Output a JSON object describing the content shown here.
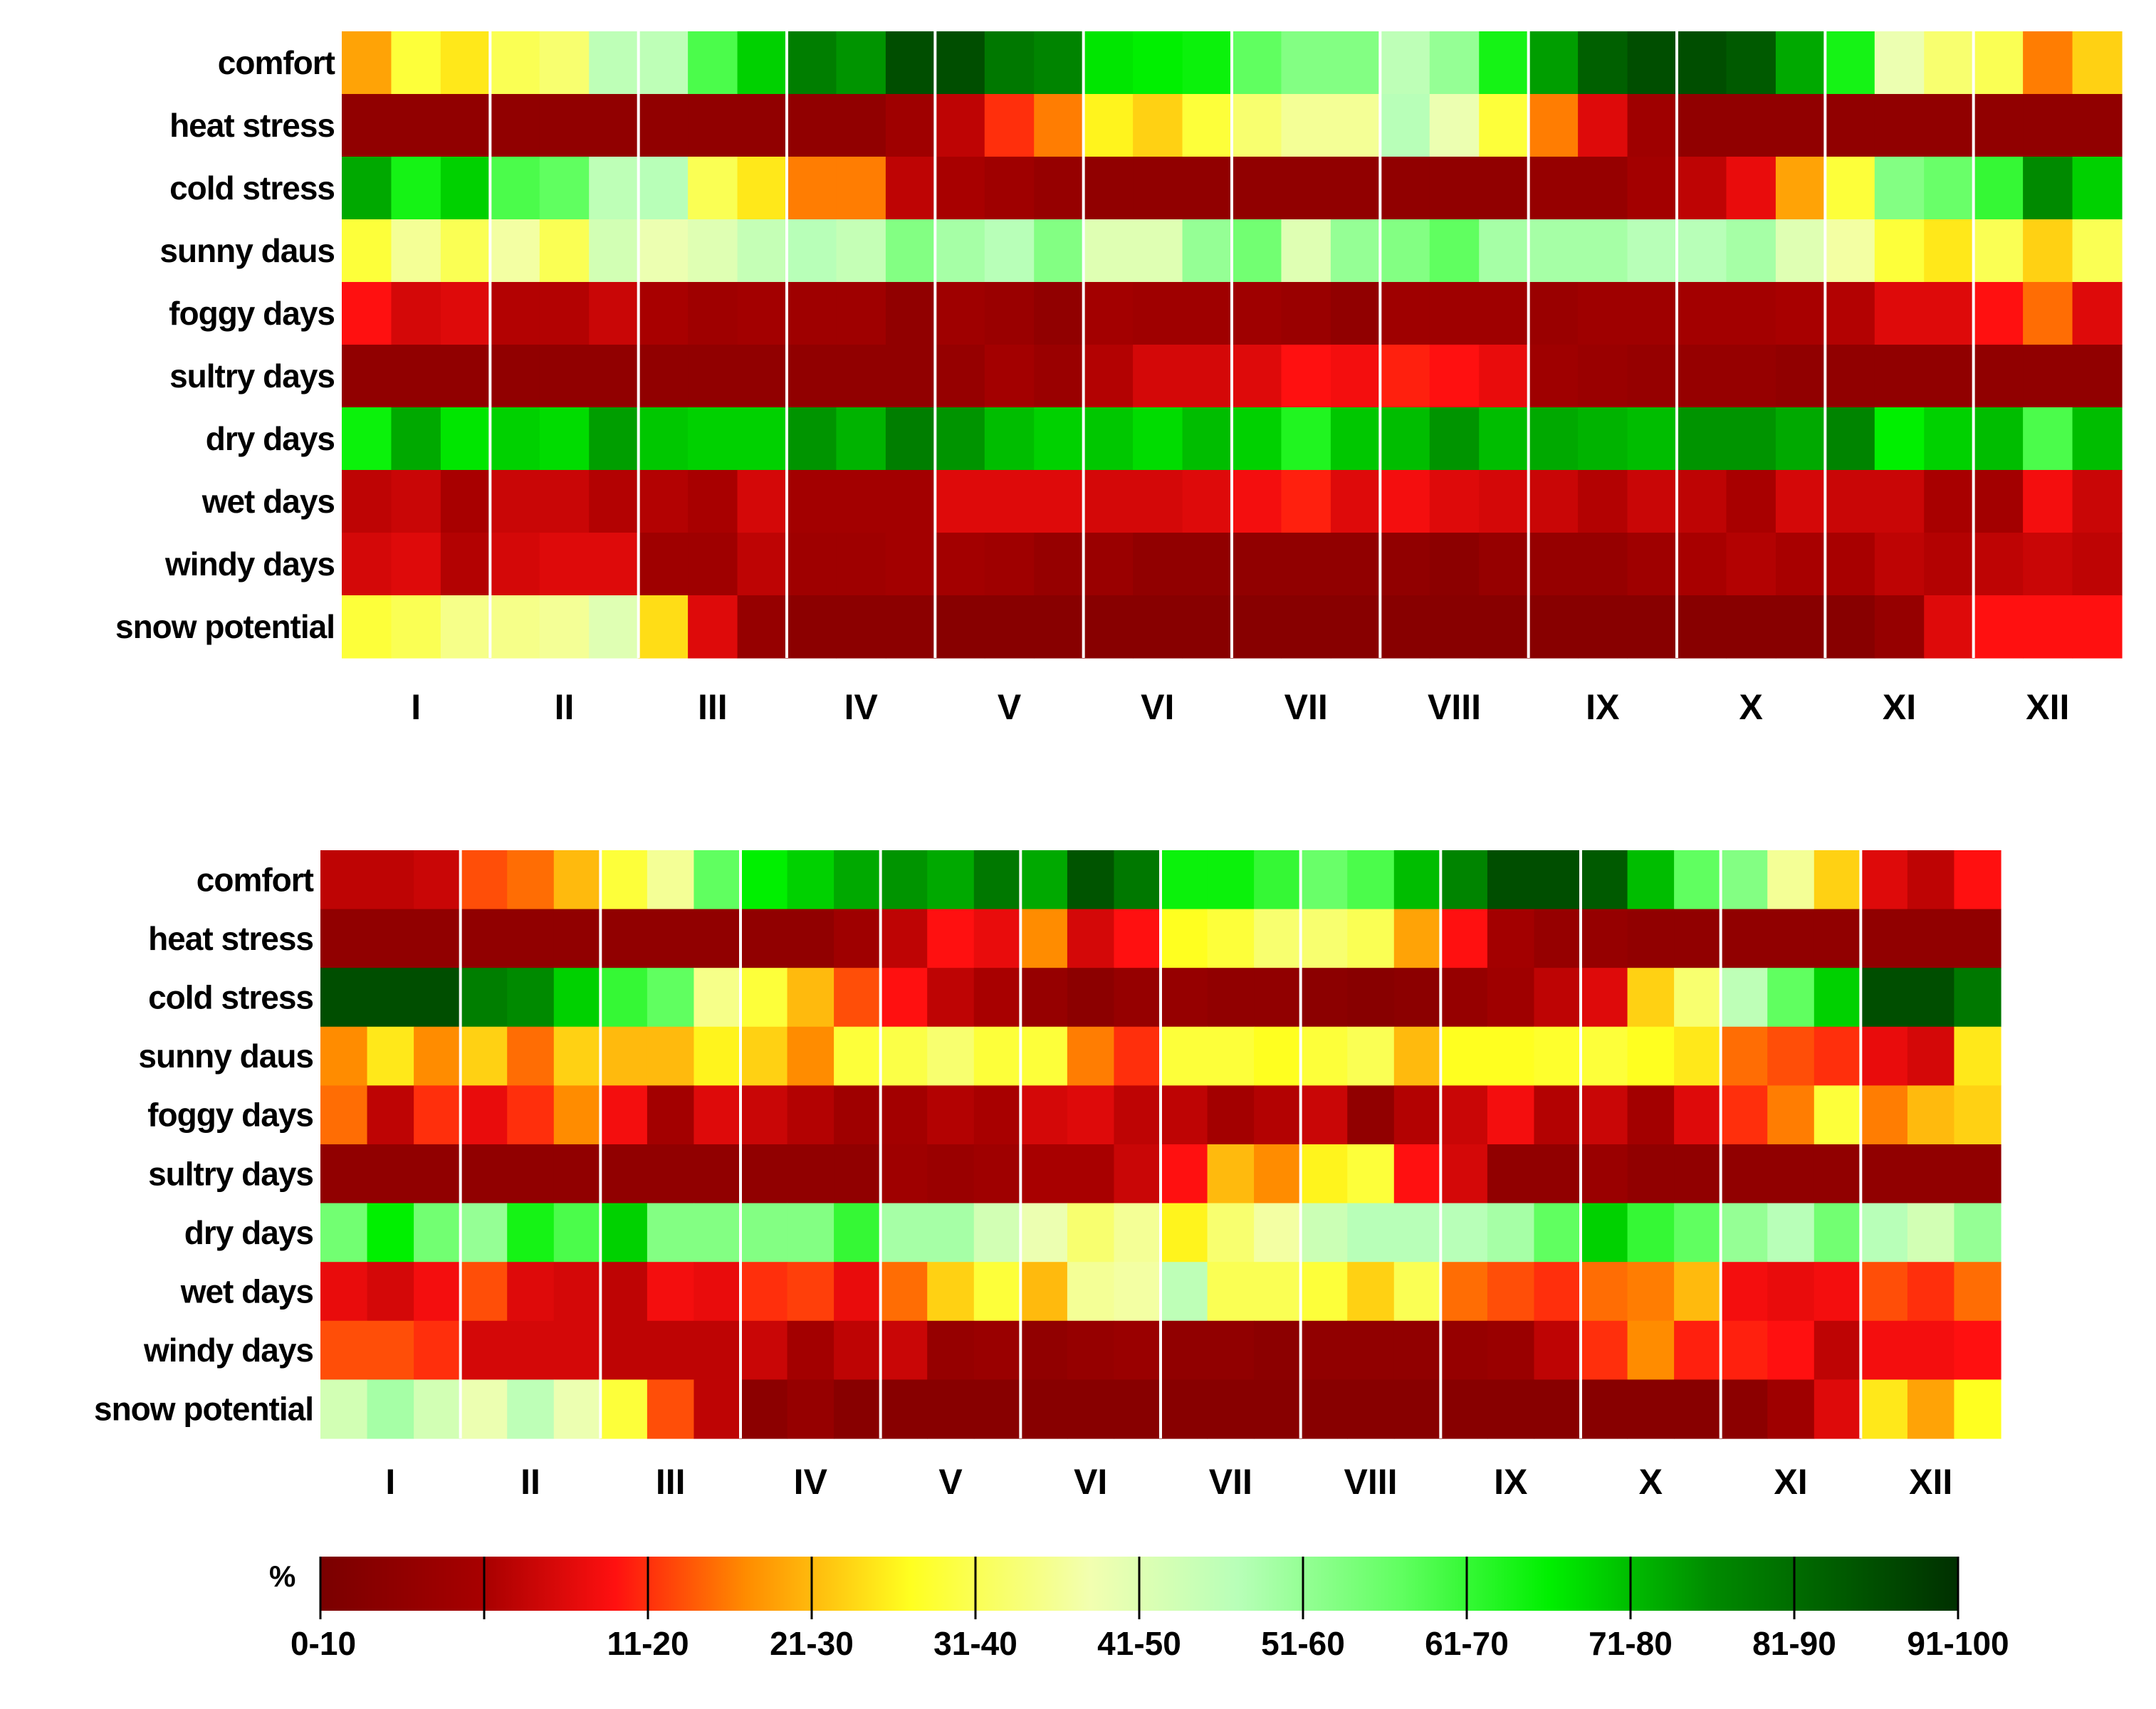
{
  "chart_data": [
    {
      "type": "heatmap",
      "name": "top-heatmap",
      "rows": [
        "comfort",
        "heat stress",
        "cold stress",
        "sunny daus",
        "foggy days",
        "sultry days",
        "dry days",
        "wet days",
        "windy days",
        "snow potential"
      ],
      "months": [
        "I",
        "II",
        "III",
        "IV",
        "V",
        "VI",
        "VII",
        "VIII",
        "IX",
        "X",
        "XI",
        "XII"
      ],
      "columns_per_month": 3,
      "values": [
        [
          28,
          38,
          34,
          40,
          42,
          55,
          55,
          68,
          78,
          87,
          84,
          95,
          95,
          88,
          86,
          76,
          75,
          74,
          66,
          62,
          62,
          55,
          60,
          73,
          83,
          92,
          95,
          95,
          93,
          82,
          73,
          48,
          42,
          40,
          25,
          32
        ],
        [
          5,
          5,
          5,
          5,
          5,
          5,
          5,
          5,
          5,
          5,
          5,
          8,
          12,
          20,
          25,
          35,
          32,
          38,
          42,
          45,
          45,
          56,
          48,
          38,
          25,
          15,
          8,
          5,
          5,
          5,
          5,
          5,
          5,
          5,
          5,
          5
        ],
        [
          82,
          73,
          78,
          68,
          66,
          55,
          56,
          40,
          34,
          25,
          25,
          12,
          10,
          8,
          6,
          5,
          5,
          5,
          5,
          5,
          5,
          5,
          5,
          5,
          6,
          6,
          9,
          12,
          16,
          28,
          38,
          62,
          65,
          70,
          85,
          78
        ],
        [
          38,
          45,
          40,
          46,
          40,
          52,
          48,
          50,
          54,
          56,
          54,
          62,
          58,
          56,
          62,
          50,
          50,
          60,
          64,
          50,
          60,
          62,
          66,
          58,
          58,
          58,
          56,
          56,
          58,
          50,
          46,
          38,
          34,
          40,
          32,
          40
        ],
        [
          18,
          14,
          15,
          11,
          11,
          13,
          10,
          8,
          9,
          8,
          8,
          5,
          8,
          7,
          5,
          9,
          8,
          8,
          8,
          7,
          5,
          8,
          8,
          8,
          7,
          8,
          8,
          9,
          9,
          10,
          11,
          15,
          15,
          18,
          24,
          15
        ],
        [
          5,
          5,
          5,
          5,
          5,
          5,
          5,
          5,
          5,
          5,
          5,
          5,
          6,
          9,
          7,
          11,
          14,
          14,
          15,
          18,
          17,
          19,
          18,
          16,
          8,
          7,
          6,
          6,
          6,
          5,
          5,
          5,
          5,
          5,
          5,
          5
        ],
        [
          74,
          82,
          76,
          78,
          77,
          83,
          79,
          78,
          78,
          84,
          81,
          87,
          84,
          80,
          78,
          79,
          77,
          80,
          78,
          72,
          79,
          80,
          84,
          80,
          82,
          81,
          80,
          84,
          84,
          82,
          86,
          75,
          78,
          80,
          68,
          80
        ],
        [
          12,
          13,
          10,
          13,
          13,
          11,
          11,
          10,
          14,
          9,
          9,
          9,
          15,
          15,
          15,
          14,
          14,
          15,
          17,
          19,
          15,
          17,
          15,
          14,
          13,
          11,
          13,
          12,
          10,
          14,
          13,
          13,
          10,
          9,
          17,
          13
        ],
        [
          14,
          15,
          11,
          14,
          15,
          15,
          8,
          8,
          12,
          8,
          8,
          9,
          9,
          8,
          6,
          7,
          5,
          5,
          5,
          5,
          5,
          5,
          4,
          6,
          6,
          6,
          8,
          10,
          11,
          10,
          10,
          12,
          11,
          12,
          13,
          12
        ],
        [
          38,
          40,
          44,
          44,
          45,
          50,
          33,
          15,
          6,
          4,
          4,
          4,
          3,
          3,
          3,
          3,
          3,
          3,
          3,
          3,
          3,
          3,
          3,
          3,
          3,
          3,
          3,
          3,
          3,
          3,
          3,
          6,
          15,
          18,
          18,
          18
        ]
      ]
    },
    {
      "type": "heatmap",
      "name": "bottom-heatmap",
      "rows": [
        "comfort",
        "heat stress",
        "cold stress",
        "sunny daus",
        "foggy days",
        "sultry days",
        "dry days",
        "wet days",
        "windy days",
        "snow potential"
      ],
      "months": [
        "I",
        "II",
        "III",
        "IV",
        "V",
        "VI",
        "VII",
        "VIII",
        "IX",
        "X",
        "XI",
        "XII"
      ],
      "columns_per_month": 3,
      "values": [
        [
          12,
          12,
          13,
          22,
          24,
          30,
          38,
          45,
          66,
          75,
          78,
          82,
          84,
          82,
          88,
          82,
          94,
          88,
          74,
          74,
          70,
          65,
          68,
          80,
          86,
          95,
          95,
          93,
          80,
          66,
          62,
          45,
          32,
          15,
          12,
          18
        ],
        [
          5,
          5,
          5,
          5,
          5,
          5,
          5,
          5,
          5,
          5,
          5,
          8,
          12,
          18,
          16,
          26,
          14,
          18,
          36,
          38,
          42,
          42,
          40,
          28,
          18,
          9,
          6,
          6,
          5,
          5,
          5,
          5,
          5,
          5,
          5,
          5
        ],
        [
          95,
          95,
          95,
          87,
          85,
          78,
          70,
          66,
          44,
          38,
          30,
          22,
          18,
          12,
          10,
          6,
          4,
          6,
          6,
          5,
          5,
          4,
          3,
          4,
          6,
          8,
          12,
          15,
          32,
          42,
          55,
          66,
          78,
          95,
          95,
          88
        ],
        [
          26,
          34,
          26,
          32,
          24,
          32,
          30,
          30,
          35,
          32,
          26,
          38,
          39,
          42,
          38,
          38,
          25,
          20,
          38,
          38,
          36,
          38,
          40,
          30,
          36,
          36,
          37,
          38,
          36,
          34,
          24,
          22,
          20,
          16,
          14,
          34
        ],
        [
          24,
          12,
          20,
          16,
          20,
          26,
          17,
          9,
          15,
          13,
          11,
          8,
          9,
          11,
          10,
          14,
          15,
          12,
          12,
          9,
          11,
          13,
          5,
          11,
          13,
          17,
          11,
          13,
          9,
          15,
          20,
          25,
          38,
          25,
          30,
          32
        ],
        [
          5,
          5,
          5,
          5,
          5,
          5,
          5,
          5,
          5,
          5,
          5,
          5,
          8,
          7,
          8,
          10,
          10,
          13,
          18,
          30,
          26,
          35,
          38,
          18,
          14,
          5,
          5,
          7,
          5,
          5,
          5,
          5,
          5,
          5,
          5,
          5
        ],
        [
          64,
          75,
          64,
          60,
          73,
          68,
          78,
          62,
          62,
          62,
          62,
          70,
          58,
          58,
          52,
          48,
          42,
          45,
          35,
          42,
          46,
          53,
          56,
          56,
          56,
          58,
          66,
          78,
          70,
          66,
          60,
          56,
          64,
          56,
          52,
          60
        ],
        [
          16,
          14,
          17,
          22,
          15,
          14,
          12,
          17,
          16,
          20,
          21,
          16,
          24,
          32,
          38,
          30,
          45,
          46,
          55,
          40,
          40,
          38,
          32,
          40,
          24,
          22,
          20,
          24,
          25,
          30,
          17,
          16,
          17,
          22,
          20,
          24
        ],
        [
          22,
          22,
          20,
          14,
          14,
          14,
          12,
          12,
          12,
          13,
          9,
          12,
          13,
          6,
          7,
          5,
          6,
          7,
          5,
          5,
          4,
          5,
          5,
          5,
          6,
          7,
          12,
          20,
          26,
          19,
          19,
          18,
          12,
          17,
          17,
          18
        ],
        [
          52,
          58,
          52,
          48,
          55,
          48,
          38,
          22,
          12,
          4,
          6,
          3,
          3,
          3,
          3,
          3,
          3,
          3,
          3,
          3,
          3,
          3,
          3,
          3,
          3,
          3,
          3,
          3,
          3,
          3,
          4,
          8,
          15,
          34,
          28,
          36
        ]
      ]
    }
  ],
  "legend": {
    "unit": "%",
    "bins": [
      "0-10",
      "11-20",
      "21-30",
      "31-40",
      "41-50",
      "51-60",
      "61-70",
      "71-80",
      "81-90",
      "91-100"
    ],
    "colors": [
      "#7a0000",
      "#ff1010",
      "#ff9a00",
      "#ffff20",
      "#f2ffb0",
      "#b8ffb8",
      "#48ff48",
      "#00e000",
      "#007a00",
      "#003a00"
    ],
    "color_stops": [
      {
        "value": 0,
        "color": "#7a0000"
      },
      {
        "value": 10,
        "color": "#a80000"
      },
      {
        "value": 18,
        "color": "#ff1010"
      },
      {
        "value": 26,
        "color": "#ff8c00"
      },
      {
        "value": 36,
        "color": "#ffff20"
      },
      {
        "value": 47,
        "color": "#f2ffb0"
      },
      {
        "value": 56,
        "color": "#b8ffb8"
      },
      {
        "value": 66,
        "color": "#60ff60"
      },
      {
        "value": 75,
        "color": "#00f000"
      },
      {
        "value": 85,
        "color": "#008a00"
      },
      {
        "value": 100,
        "color": "#003000"
      }
    ]
  }
}
